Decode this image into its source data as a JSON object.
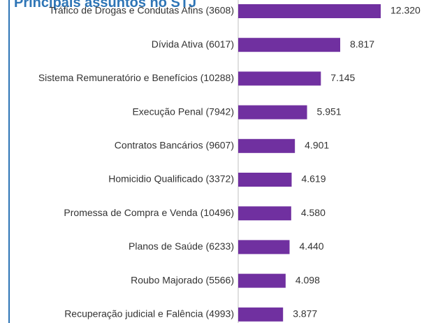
{
  "chart_data": {
    "type": "bar",
    "orientation": "horizontal",
    "title": "Principais assuntos no STJ",
    "categories": [
      "Tráfico de Drogas e Condutas Afins (3608)",
      "Dívida Ativa (6017)",
      "Sistema Remuneratório e Benefícios (10288)",
      "Execução Penal (7942)",
      "Contratos Bancários (9607)",
      "Homicidio Qualificado (3372)",
      "Promessa de Compra e Venda (10496)",
      "Planos de Saúde (6233)",
      "Roubo Majorado (5566)",
      "Recuperação judicial e Falência (4993)"
    ],
    "values": [
      12320,
      8817,
      7145,
      5951,
      4901,
      4619,
      4580,
      4440,
      4098,
      3877
    ],
    "value_labels": [
      "12.320",
      "8.817",
      "7.145",
      "5.951",
      "4.901",
      "4.619",
      "4.580",
      "4.440",
      "4.098",
      "3.877"
    ],
    "color": "#7030a0"
  }
}
